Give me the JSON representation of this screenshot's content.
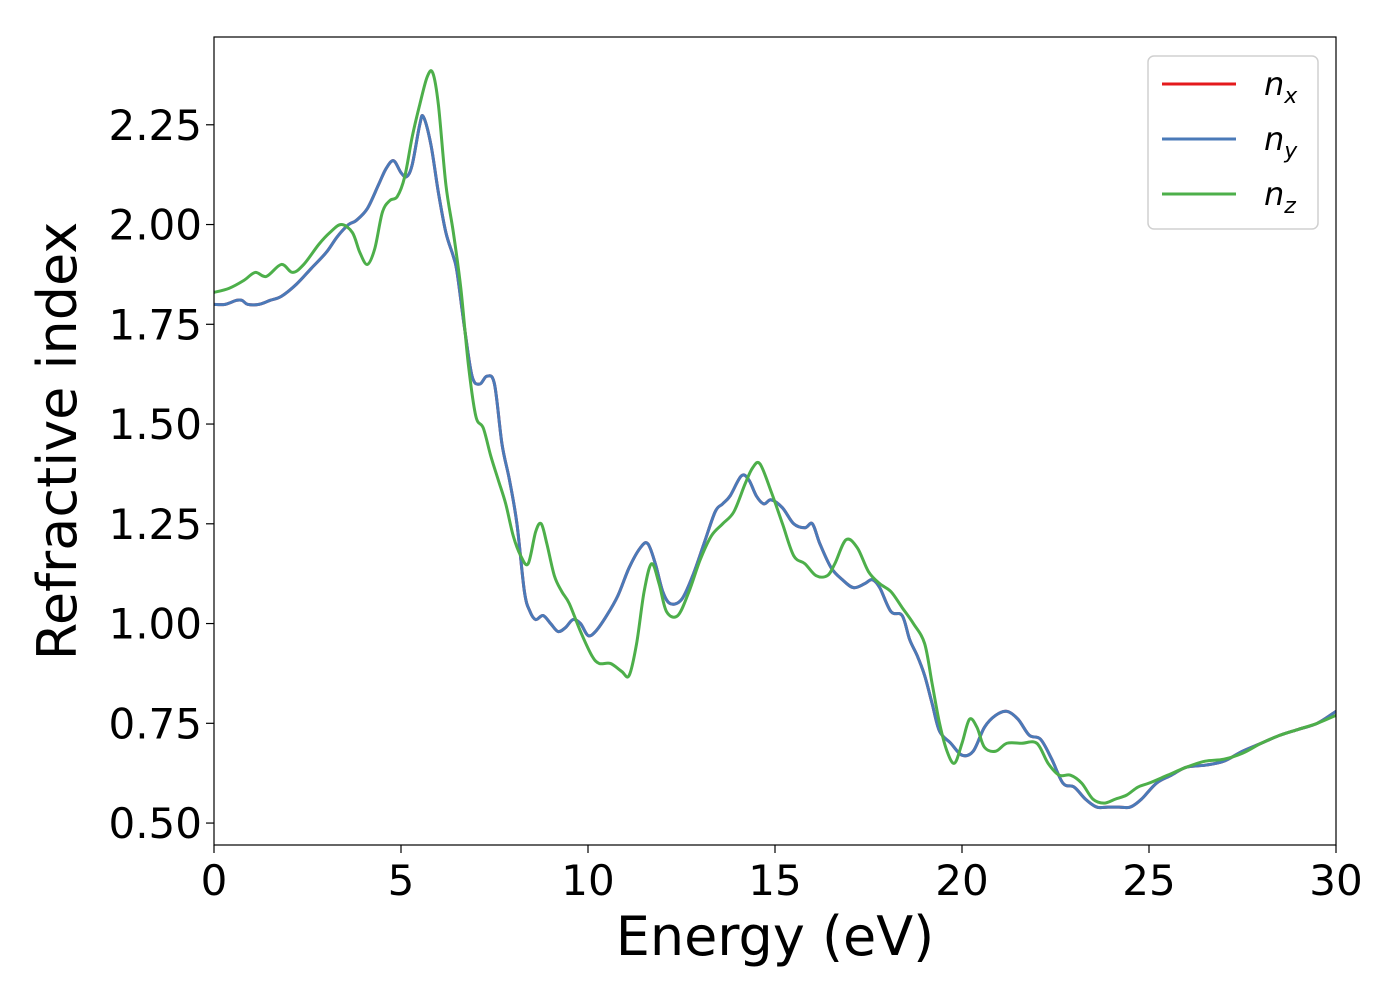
{
  "chart_data": {
    "type": "line",
    "xlabel": "Energy (eV)",
    "ylabel": "Refractive index",
    "xlim": [
      0,
      30
    ],
    "ylim": [
      0.445,
      2.47
    ],
    "xticks": [
      0,
      5,
      10,
      15,
      20,
      25,
      30
    ],
    "xtick_labels": [
      "0",
      "5",
      "10",
      "15",
      "20",
      "25",
      "30"
    ],
    "yticks": [
      0.5,
      0.75,
      1.0,
      1.25,
      1.5,
      1.75,
      2.0,
      2.25
    ],
    "ytick_labels": [
      "0.50",
      "0.75",
      "1.00",
      "1.25",
      "1.50",
      "1.75",
      "2.00",
      "2.25"
    ],
    "grid": false,
    "legend_position": "top-right",
    "series": [
      {
        "name": "n_x",
        "legend_base": "n",
        "legend_sub": "x",
        "color": "#e41a1c",
        "x": [
          0,
          0.3,
          0.6,
          0.75,
          0.9,
          1.2,
          1.5,
          1.8,
          2.2,
          2.6,
          3.0,
          3.3,
          3.6,
          3.8,
          4.1,
          4.4,
          4.6,
          4.8,
          5.0,
          5.15,
          5.3,
          5.5,
          5.6,
          5.8,
          6.0,
          6.2,
          6.4,
          6.5,
          6.7,
          6.9,
          7.1,
          7.3,
          7.5,
          7.7,
          7.9,
          8.1,
          8.3,
          8.45,
          8.6,
          8.8,
          9.0,
          9.2,
          9.4,
          9.6,
          9.8,
          10.0,
          10.2,
          10.5,
          10.8,
          11.1,
          11.4,
          11.6,
          11.8,
          12.0,
          12.2,
          12.5,
          12.8,
          13.1,
          13.4,
          13.6,
          13.8,
          14.1,
          14.3,
          14.5,
          14.7,
          14.9,
          15.2,
          15.5,
          15.8,
          16.0,
          16.2,
          16.5,
          16.8,
          17.1,
          17.4,
          17.6,
          17.8,
          18.1,
          18.4,
          18.6,
          18.8,
          19.0,
          19.2,
          19.4,
          19.7,
          20.0,
          20.3,
          20.6,
          20.9,
          21.2,
          21.5,
          21.8,
          22.1,
          22.4,
          22.7,
          23.0,
          23.3,
          23.6,
          23.9,
          24.2,
          24.5,
          24.8,
          25.2,
          25.6,
          26.0,
          26.5,
          27.0,
          27.5,
          28.0,
          28.5,
          29.0,
          29.5,
          30.0
        ],
        "y": [
          1.8,
          1.8,
          1.81,
          1.81,
          1.8,
          1.8,
          1.81,
          1.82,
          1.85,
          1.89,
          1.93,
          1.97,
          2.0,
          2.01,
          2.04,
          2.1,
          2.14,
          2.16,
          2.13,
          2.12,
          2.15,
          2.25,
          2.27,
          2.2,
          2.08,
          1.98,
          1.92,
          1.88,
          1.74,
          1.62,
          1.6,
          1.62,
          1.6,
          1.45,
          1.36,
          1.25,
          1.08,
          1.03,
          1.01,
          1.02,
          1.0,
          0.98,
          0.99,
          1.01,
          1.0,
          0.97,
          0.98,
          1.02,
          1.07,
          1.14,
          1.19,
          1.2,
          1.15,
          1.08,
          1.05,
          1.06,
          1.12,
          1.2,
          1.28,
          1.3,
          1.32,
          1.37,
          1.36,
          1.32,
          1.3,
          1.31,
          1.29,
          1.25,
          1.24,
          1.25,
          1.2,
          1.14,
          1.11,
          1.09,
          1.1,
          1.11,
          1.09,
          1.03,
          1.02,
          0.96,
          0.92,
          0.87,
          0.8,
          0.73,
          0.7,
          0.67,
          0.68,
          0.74,
          0.77,
          0.78,
          0.76,
          0.72,
          0.71,
          0.66,
          0.6,
          0.59,
          0.56,
          0.54,
          0.54,
          0.54,
          0.54,
          0.56,
          0.6,
          0.62,
          0.64,
          0.645,
          0.655,
          0.68,
          0.7,
          0.72,
          0.735,
          0.75,
          0.78
        ]
      },
      {
        "name": "n_y",
        "legend_base": "n",
        "legend_sub": "y",
        "color": "#4a7ab8",
        "x": [
          0,
          0.3,
          0.6,
          0.75,
          0.9,
          1.2,
          1.5,
          1.8,
          2.2,
          2.6,
          3.0,
          3.3,
          3.6,
          3.8,
          4.1,
          4.4,
          4.6,
          4.8,
          5.0,
          5.15,
          5.3,
          5.5,
          5.6,
          5.8,
          6.0,
          6.2,
          6.4,
          6.5,
          6.7,
          6.9,
          7.1,
          7.3,
          7.5,
          7.7,
          7.9,
          8.1,
          8.3,
          8.45,
          8.6,
          8.8,
          9.0,
          9.2,
          9.4,
          9.6,
          9.8,
          10.0,
          10.2,
          10.5,
          10.8,
          11.1,
          11.4,
          11.6,
          11.8,
          12.0,
          12.2,
          12.5,
          12.8,
          13.1,
          13.4,
          13.6,
          13.8,
          14.1,
          14.3,
          14.5,
          14.7,
          14.9,
          15.2,
          15.5,
          15.8,
          16.0,
          16.2,
          16.5,
          16.8,
          17.1,
          17.4,
          17.6,
          17.8,
          18.1,
          18.4,
          18.6,
          18.8,
          19.0,
          19.2,
          19.4,
          19.7,
          20.0,
          20.3,
          20.6,
          20.9,
          21.2,
          21.5,
          21.8,
          22.1,
          22.4,
          22.7,
          23.0,
          23.3,
          23.6,
          23.9,
          24.2,
          24.5,
          24.8,
          25.2,
          25.6,
          26.0,
          26.5,
          27.0,
          27.5,
          28.0,
          28.5,
          29.0,
          29.5,
          30.0
        ],
        "y": [
          1.8,
          1.8,
          1.81,
          1.81,
          1.8,
          1.8,
          1.81,
          1.82,
          1.85,
          1.89,
          1.93,
          1.97,
          2.0,
          2.01,
          2.04,
          2.1,
          2.14,
          2.16,
          2.13,
          2.12,
          2.15,
          2.25,
          2.27,
          2.2,
          2.08,
          1.98,
          1.92,
          1.88,
          1.74,
          1.62,
          1.6,
          1.62,
          1.6,
          1.45,
          1.36,
          1.25,
          1.08,
          1.03,
          1.01,
          1.02,
          1.0,
          0.98,
          0.99,
          1.01,
          1.0,
          0.97,
          0.98,
          1.02,
          1.07,
          1.14,
          1.19,
          1.2,
          1.15,
          1.08,
          1.05,
          1.06,
          1.12,
          1.2,
          1.28,
          1.3,
          1.32,
          1.37,
          1.36,
          1.32,
          1.3,
          1.31,
          1.29,
          1.25,
          1.24,
          1.25,
          1.2,
          1.14,
          1.11,
          1.09,
          1.1,
          1.11,
          1.09,
          1.03,
          1.02,
          0.96,
          0.92,
          0.87,
          0.8,
          0.73,
          0.7,
          0.67,
          0.68,
          0.74,
          0.77,
          0.78,
          0.76,
          0.72,
          0.71,
          0.66,
          0.6,
          0.59,
          0.56,
          0.54,
          0.54,
          0.54,
          0.54,
          0.56,
          0.6,
          0.62,
          0.64,
          0.645,
          0.655,
          0.68,
          0.7,
          0.72,
          0.735,
          0.75,
          0.78
        ]
      },
      {
        "name": "n_z",
        "legend_base": "n",
        "legend_sub": "z",
        "color": "#4daf4a",
        "x": [
          0,
          0.4,
          0.8,
          1.1,
          1.4,
          1.8,
          2.1,
          2.4,
          2.8,
          3.1,
          3.4,
          3.7,
          3.9,
          4.1,
          4.3,
          4.5,
          4.7,
          4.9,
          5.1,
          5.3,
          5.5,
          5.7,
          5.85,
          6.0,
          6.2,
          6.4,
          6.6,
          6.8,
          7.0,
          7.2,
          7.4,
          7.6,
          7.8,
          8.0,
          8.2,
          8.4,
          8.6,
          8.75,
          8.9,
          9.1,
          9.3,
          9.5,
          9.8,
          10.1,
          10.3,
          10.6,
          10.9,
          11.1,
          11.3,
          11.5,
          11.7,
          11.9,
          12.1,
          12.4,
          12.7,
          13.0,
          13.3,
          13.6,
          13.9,
          14.2,
          14.4,
          14.6,
          14.9,
          15.2,
          15.5,
          15.8,
          16.1,
          16.4,
          16.6,
          16.9,
          17.2,
          17.5,
          17.8,
          18.1,
          18.4,
          18.7,
          19.0,
          19.2,
          19.4,
          19.6,
          19.8,
          20.0,
          20.2,
          20.4,
          20.6,
          20.9,
          21.2,
          21.6,
          22.0,
          22.3,
          22.6,
          22.9,
          23.2,
          23.5,
          23.8,
          24.1,
          24.4,
          24.7,
          25.0,
          25.5,
          26.0,
          26.5,
          27.0,
          27.5,
          28.0,
          28.5,
          29.0,
          29.5,
          30.0
        ],
        "y": [
          1.83,
          1.84,
          1.86,
          1.88,
          1.87,
          1.9,
          1.88,
          1.9,
          1.95,
          1.98,
          2.0,
          1.98,
          1.93,
          1.9,
          1.94,
          2.03,
          2.06,
          2.07,
          2.12,
          2.22,
          2.3,
          2.37,
          2.38,
          2.3,
          2.1,
          1.98,
          1.84,
          1.65,
          1.52,
          1.49,
          1.42,
          1.36,
          1.3,
          1.22,
          1.17,
          1.15,
          1.23,
          1.25,
          1.2,
          1.12,
          1.08,
          1.05,
          0.98,
          0.92,
          0.9,
          0.9,
          0.88,
          0.87,
          0.95,
          1.08,
          1.15,
          1.1,
          1.03,
          1.02,
          1.08,
          1.16,
          1.22,
          1.25,
          1.28,
          1.35,
          1.39,
          1.4,
          1.33,
          1.25,
          1.17,
          1.15,
          1.12,
          1.12,
          1.15,
          1.21,
          1.19,
          1.13,
          1.1,
          1.08,
          1.04,
          1.0,
          0.95,
          0.85,
          0.75,
          0.68,
          0.65,
          0.7,
          0.76,
          0.74,
          0.69,
          0.68,
          0.7,
          0.7,
          0.7,
          0.65,
          0.62,
          0.62,
          0.6,
          0.56,
          0.55,
          0.56,
          0.57,
          0.59,
          0.6,
          0.62,
          0.64,
          0.655,
          0.66,
          0.675,
          0.7,
          0.72,
          0.735,
          0.75,
          0.77
        ]
      }
    ]
  }
}
